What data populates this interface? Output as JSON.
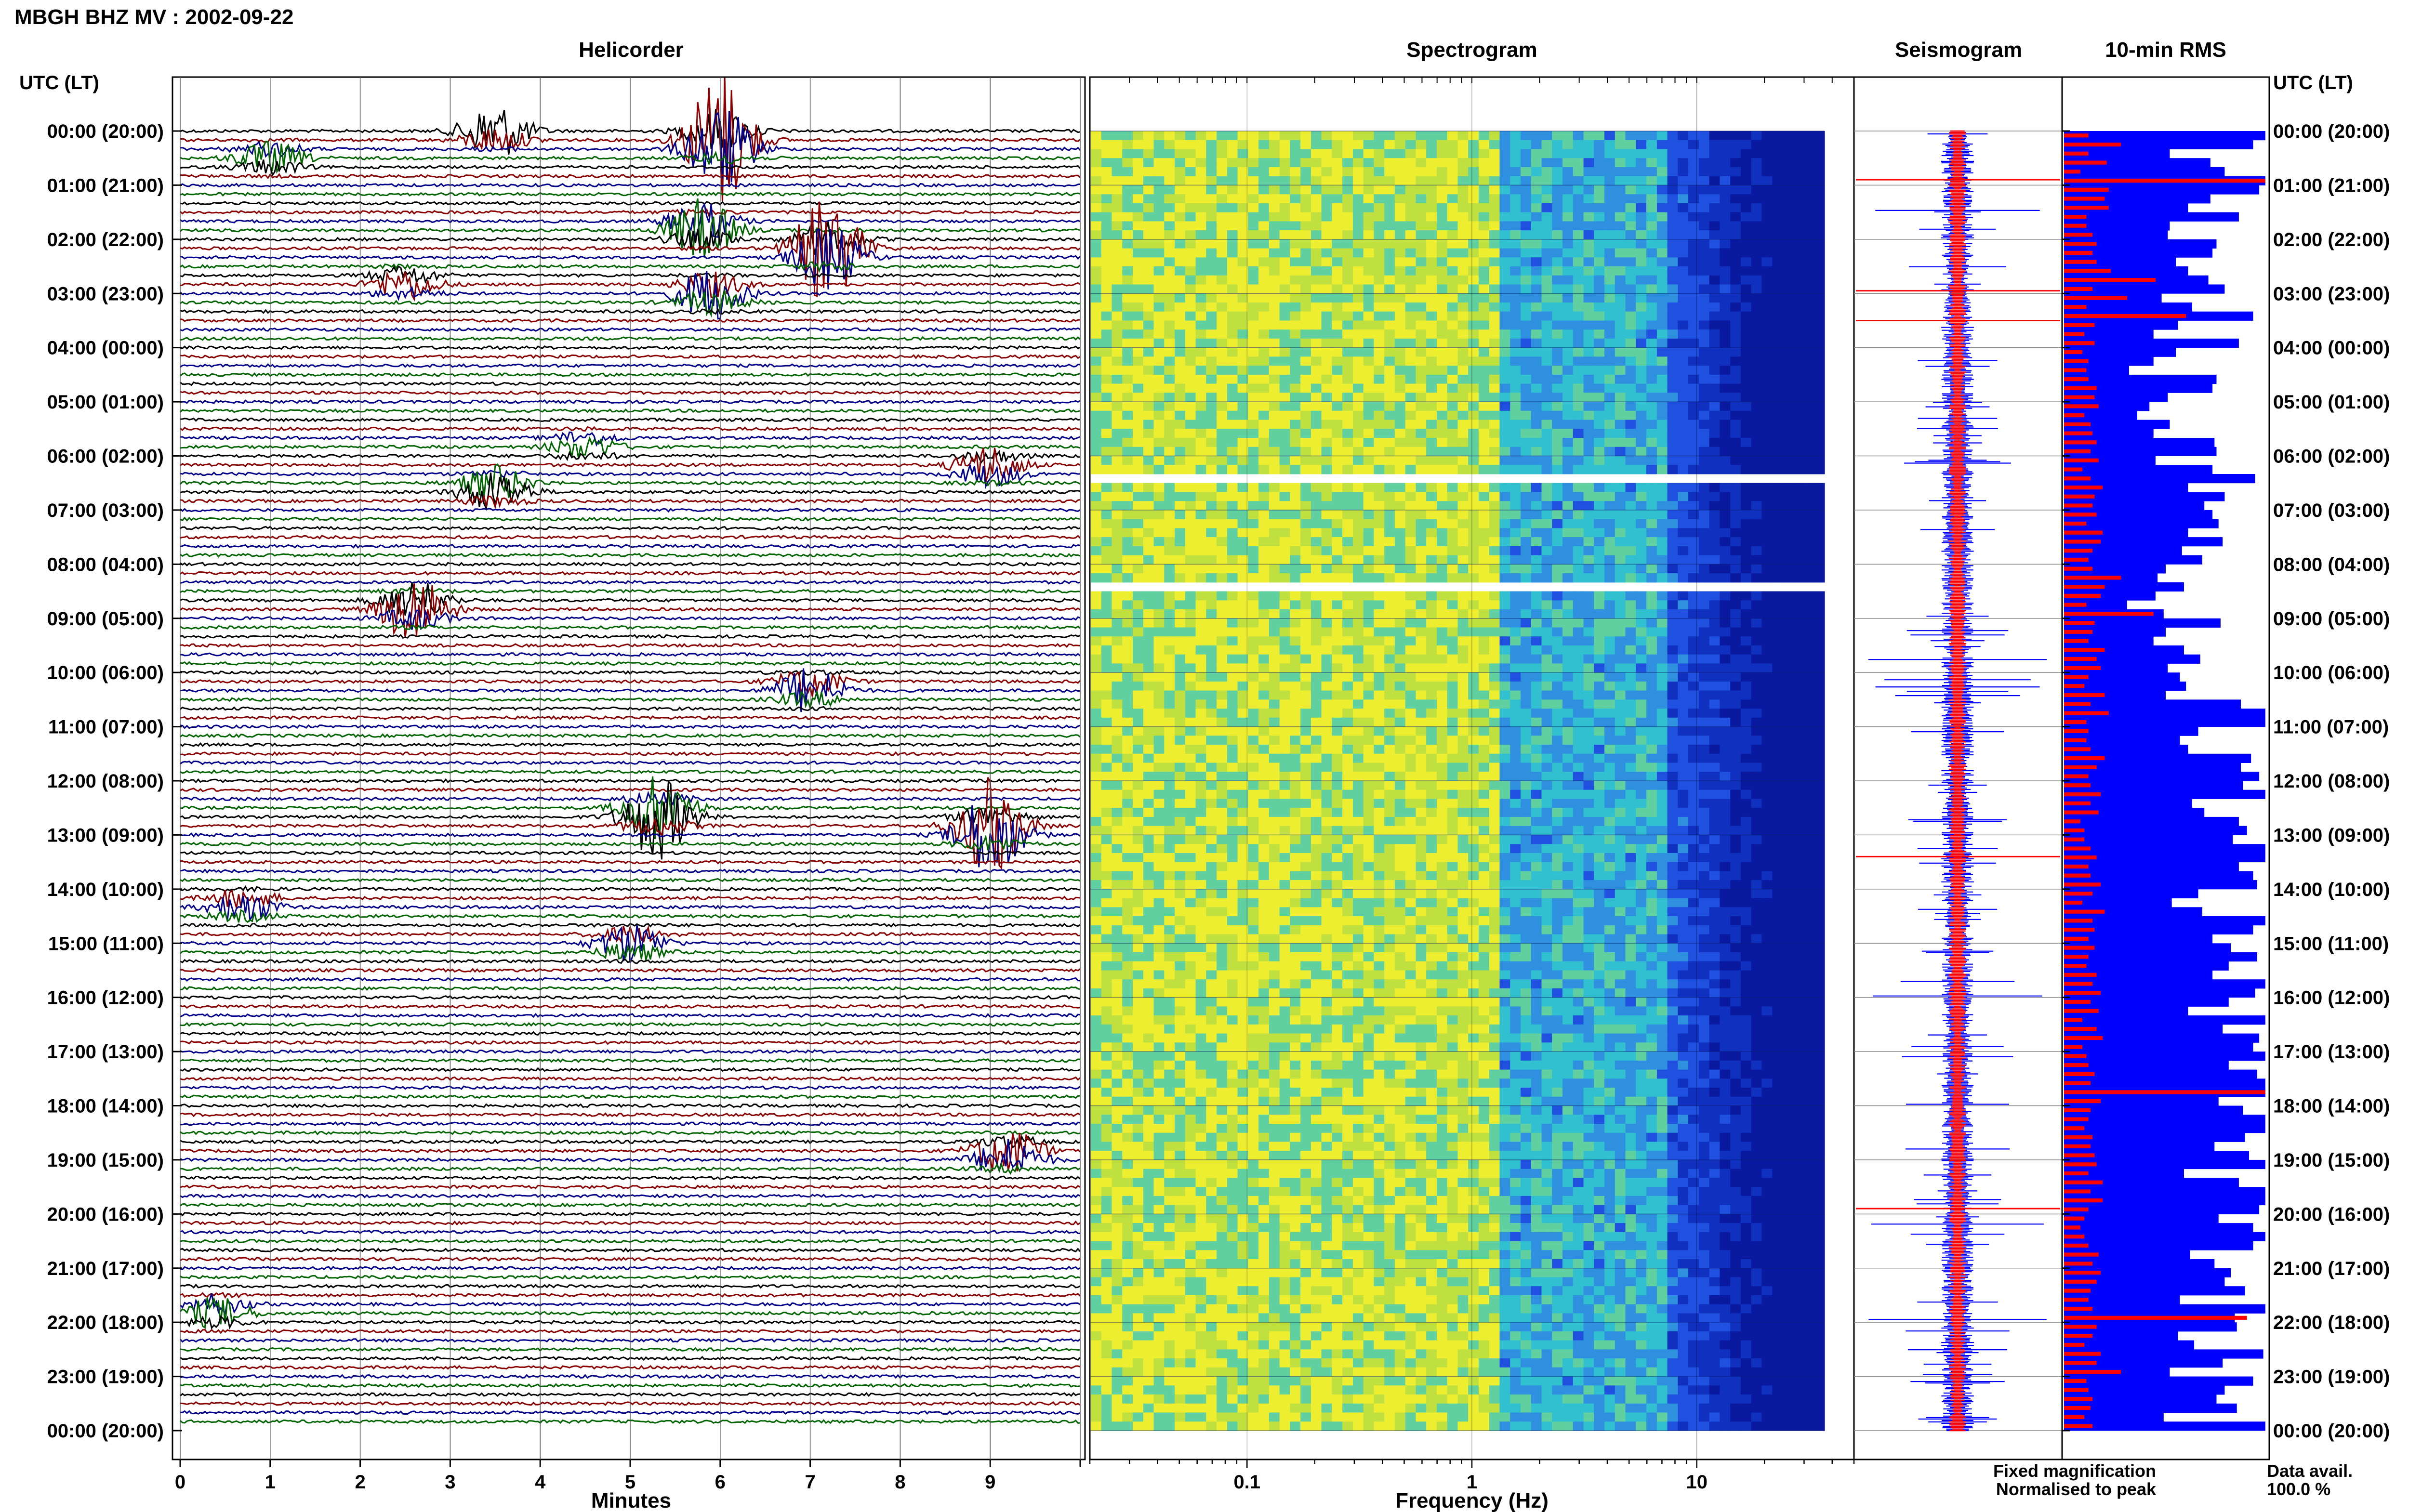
{
  "header": {
    "station_title": "MBGH BHZ MV : 2002-09-22"
  },
  "panels": {
    "helicorder": {
      "title": "Helicorder",
      "xlabel": "Minutes",
      "time_label_left": "UTC (LT)"
    },
    "spectrogram": {
      "title": "Spectrogram",
      "xlabel": "Frequency (Hz)"
    },
    "seismogram": {
      "title": "Seismogram"
    },
    "rms": {
      "title": "10-min RMS",
      "time_label_right": "UTC (LT)"
    }
  },
  "legend": {
    "fixed": "Fixed magnification",
    "normalised": "Normalised to peak",
    "data_avail_label": "Data avail.",
    "data_avail_value": "100.0 %"
  },
  "colors": {
    "trace_cycle": [
      "#000000",
      "#8b0000",
      "#00008b",
      "#006400"
    ],
    "fixed": "#0000ff",
    "normalised": "#ff0000"
  },
  "chart_data": [
    {
      "type": "line",
      "name": "helicorder",
      "title": "Helicorder",
      "xlabel": "Minutes",
      "x_ticks": [
        "0",
        "1",
        "2",
        "3",
        "4",
        "5",
        "6",
        "7",
        "8",
        "9"
      ],
      "xlim": [
        0,
        10
      ],
      "row_minutes": 10,
      "row_count": 144,
      "time_labels": [
        "00:00 (20:00)",
        "01:00 (21:00)",
        "02:00 (22:00)",
        "03:00 (23:00)",
        "04:00 (00:00)",
        "05:00 (01:00)",
        "06:00 (02:00)",
        "07:00 (03:00)",
        "08:00 (04:00)",
        "09:00 (05:00)",
        "10:00 (06:00)",
        "11:00 (07:00)",
        "12:00 (08:00)",
        "13:00 (09:00)",
        "14:00 (10:00)",
        "15:00 (11:00)",
        "16:00 (12:00)",
        "17:00 (13:00)",
        "18:00 (14:00)",
        "19:00 (15:00)",
        "20:00 (16:00)",
        "21:00 (17:00)",
        "22:00 (18:00)",
        "23:00 (19:00)",
        "00:00 (20:00)"
      ],
      "events": [
        {
          "hour": 0.0,
          "minute": 3.5,
          "amp": 7
        },
        {
          "hour": 0.2,
          "minute": 6.0,
          "amp": 18
        },
        {
          "hour": 0.5,
          "minute": 1.0,
          "amp": 4
        },
        {
          "hour": 1.8,
          "minute": 5.8,
          "amp": 8
        },
        {
          "hour": 2.2,
          "minute": 7.2,
          "amp": 14
        },
        {
          "hour": 2.8,
          "minute": 2.5,
          "amp": 4
        },
        {
          "hour": 3.0,
          "minute": 5.9,
          "amp": 7
        },
        {
          "hour": 5.8,
          "minute": 4.5,
          "amp": 3
        },
        {
          "hour": 6.2,
          "minute": 9.0,
          "amp": 5
        },
        {
          "hour": 6.6,
          "minute": 3.5,
          "amp": 6
        },
        {
          "hour": 8.8,
          "minute": 2.6,
          "amp": 9
        },
        {
          "hour": 10.3,
          "minute": 7.0,
          "amp": 6
        },
        {
          "hour": 12.6,
          "minute": 5.3,
          "amp": 12
        },
        {
          "hour": 12.9,
          "minute": 9.0,
          "amp": 14
        },
        {
          "hour": 14.3,
          "minute": 0.7,
          "amp": 4
        },
        {
          "hour": 15.0,
          "minute": 5.0,
          "amp": 5
        },
        {
          "hour": 18.9,
          "minute": 9.2,
          "amp": 7
        },
        {
          "hour": 21.8,
          "minute": 0.4,
          "amp": 4
        }
      ]
    },
    {
      "type": "heatmap",
      "name": "spectrogram",
      "title": "Spectrogram",
      "xlabel": "Frequency (Hz)",
      "x_scale": "log",
      "xlim": [
        0.02,
        50
      ],
      "x_ticks": [
        "0.1",
        "1",
        "10"
      ],
      "gaps_hours": [
        6.3,
        8.4
      ],
      "peak_band_hz": [
        0.3,
        0.6
      ]
    },
    {
      "type": "line",
      "name": "seismogram",
      "title": "Seismogram",
      "series": [
        {
          "name": "Fixed magnification",
          "color": "#0000ff"
        },
        {
          "name": "Normalised to peak",
          "color": "#ff0000"
        }
      ]
    },
    {
      "type": "bar",
      "name": "rms",
      "title": "10-min RMS",
      "bins_per_hour": 6,
      "bin_count": 144,
      "fixed_values": [
        0.99,
        0.93,
        0.52,
        0.72,
        0.79,
        0.99,
        0.96,
        0.72,
        0.61,
        0.86,
        0.52,
        0.51,
        0.75,
        0.73,
        0.55,
        0.61,
        0.71,
        0.79,
        0.48,
        0.63,
        0.93,
        0.56,
        0.44,
        0.86,
        0.55,
        0.44,
        0.32,
        0.75,
        0.73,
        0.51,
        0.42,
        0.36,
        0.52,
        0.44,
        0.74,
        0.75,
        0.45,
        0.73,
        0.94,
        0.61,
        0.79,
        0.69,
        0.73,
        0.76,
        0.61,
        0.78,
        0.58,
        0.68,
        0.5,
        0.46,
        0.59,
        0.45,
        0.31,
        0.49,
        0.77,
        0.5,
        0.44,
        0.59,
        0.67,
        0.51,
        0.57,
        0.6,
        0.5,
        0.87,
        0.99,
        0.99,
        0.66,
        0.57,
        0.61,
        0.92,
        0.87,
        0.96,
        0.88,
        0.99,
        0.63,
        0.69,
        0.86,
        0.9,
        0.83,
        0.99,
        0.99,
        0.86,
        0.93,
        0.95,
        0.66,
        0.53,
        0.68,
        0.99,
        0.93,
        0.73,
        0.82,
        0.95,
        0.81,
        0.73,
        0.99,
        0.94,
        0.81,
        0.61,
        0.99,
        0.78,
        0.96,
        0.93,
        0.99,
        0.81,
        0.95,
        0.99,
        0.99,
        0.76,
        0.88,
        0.99,
        0.99,
        0.89,
        0.74,
        0.91,
        0.99,
        0.59,
        0.86,
        0.99,
        0.99,
        0.96,
        0.76,
        0.93,
        0.99,
        0.93,
        0.62,
        0.74,
        0.82,
        0.79,
        0.89,
        0.57,
        0.99,
        0.84,
        0.85,
        0.56,
        0.64,
        0.98,
        0.78,
        0.52,
        0.93,
        0.79,
        0.75,
        0.85,
        0.49,
        0.99
      ],
      "normalised_values": [
        0.12,
        0.28,
        0.12,
        0.21,
        0.08,
        0.99,
        0.22,
        0.2,
        0.22,
        0.11,
        0.11,
        0.14,
        0.16,
        0.14,
        0.16,
        0.23,
        0.45,
        0.14,
        0.31,
        0.11,
        0.6,
        0.15,
        0.1,
        0.15,
        0.09,
        0.12,
        0.11,
        0.12,
        0.16,
        0.15,
        0.17,
        0.1,
        0.13,
        0.14,
        0.16,
        0.13,
        0.17,
        0.09,
        0.13,
        0.19,
        0.15,
        0.14,
        0.16,
        0.11,
        0.19,
        0.18,
        0.14,
        0.12,
        0.14,
        0.28,
        0.2,
        0.18,
        0.11,
        0.44,
        0.15,
        0.14,
        0.12,
        0.2,
        0.16,
        0.18,
        0.12,
        0.1,
        0.2,
        0.13,
        0.22,
        0.11,
        0.12,
        0.11,
        0.13,
        0.2,
        0.16,
        0.12,
        0.13,
        0.18,
        0.13,
        0.17,
        0.08,
        0.1,
        0.1,
        0.13,
        0.16,
        0.12,
        0.13,
        0.18,
        0.14,
        0.09,
        0.2,
        0.14,
        0.15,
        0.12,
        0.15,
        0.12,
        0.11,
        0.16,
        0.14,
        0.18,
        0.13,
        0.17,
        0.09,
        0.16,
        0.19,
        0.09,
        0.11,
        0.12,
        0.15,
        0.13,
        0.99,
        0.18,
        0.13,
        0.12,
        0.1,
        0.14,
        0.13,
        0.15,
        0.16,
        0.12,
        0.19,
        0.13,
        0.19,
        0.12,
        0.1,
        0.08,
        0.1,
        0.12,
        0.17,
        0.14,
        0.18,
        0.16,
        0.13,
        0.12,
        0.14,
        0.9,
        0.16,
        0.14,
        0.1,
        0.18,
        0.16,
        0.28,
        0.11,
        0.12,
        0.14,
        0.13,
        0.1,
        0.14
      ]
    }
  ]
}
